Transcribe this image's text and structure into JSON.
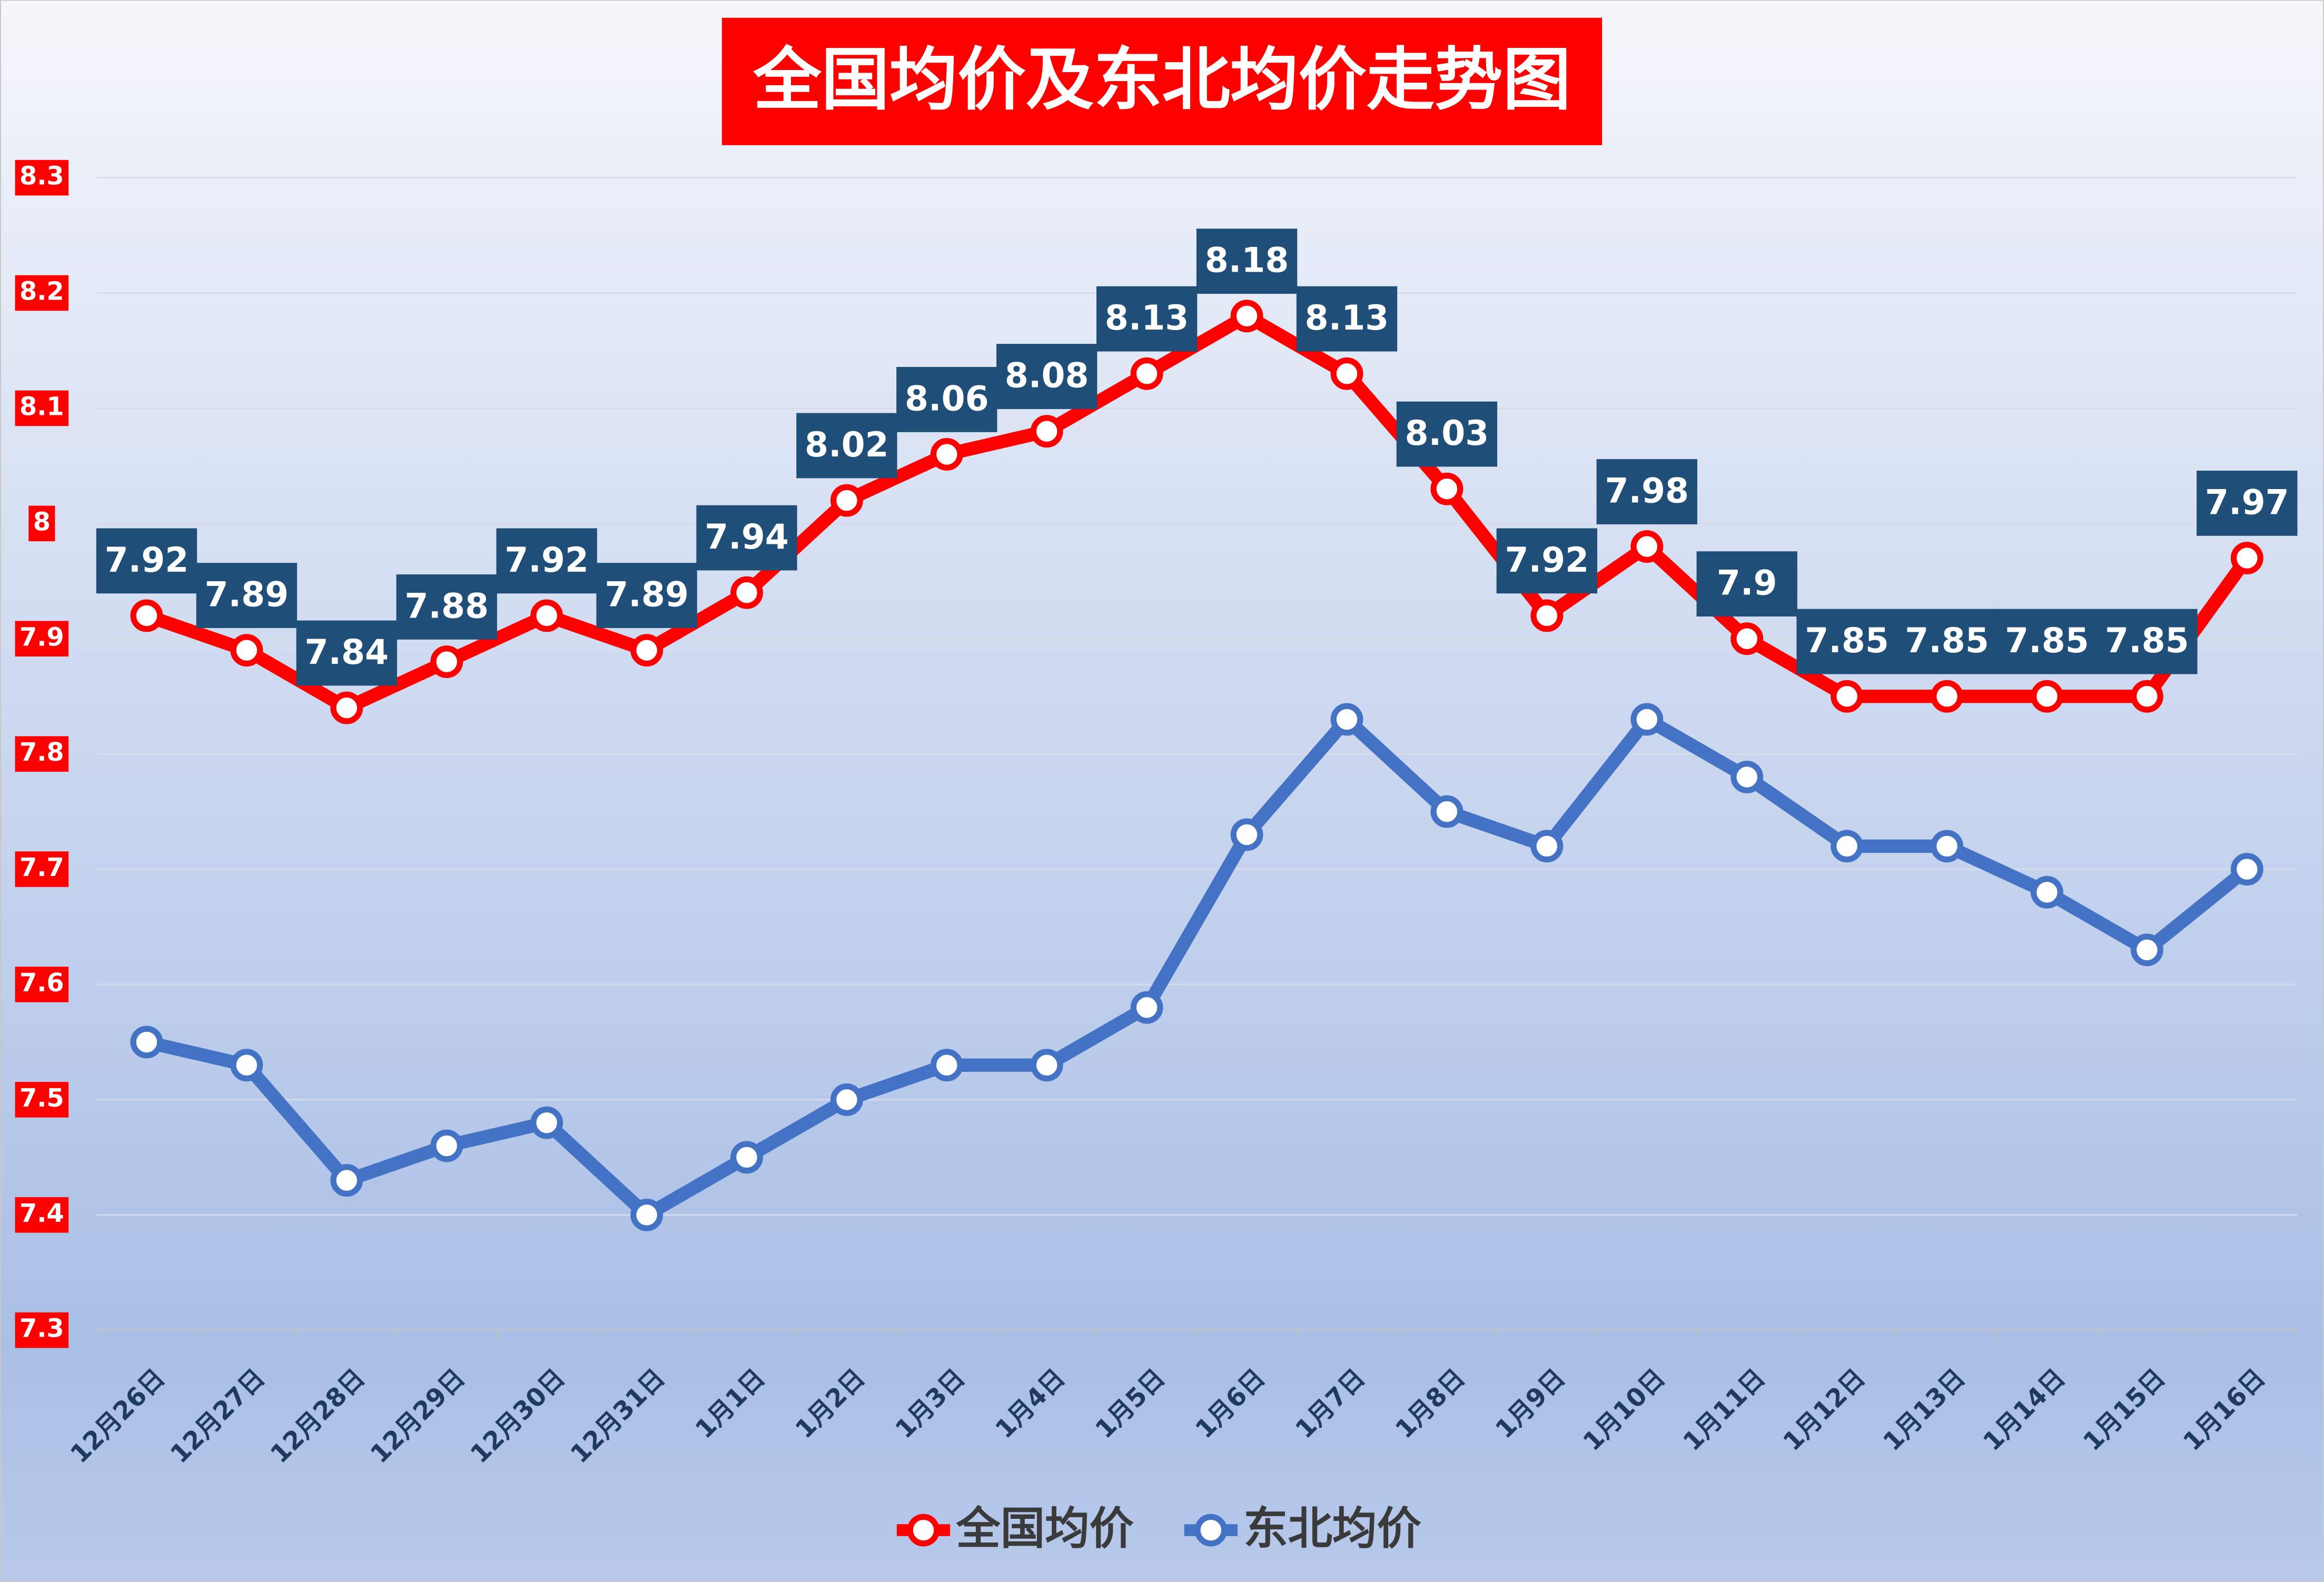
{
  "chart_data": {
    "type": "line",
    "title": "全国均价及东北均价走势图",
    "categories": [
      "12月26日",
      "12月27日",
      "12月28日",
      "12月29日",
      "12月30日",
      "12月31日",
      "1月1日",
      "1月2日",
      "1月3日",
      "1月4日",
      "1月5日",
      "1月6日",
      "1月7日",
      "1月8日",
      "1月9日",
      "1月10日",
      "1月11日",
      "1月12日",
      "1月13日",
      "1月14日",
      "1月15日",
      "1月16日"
    ],
    "series": [
      {
        "name": "全国均价",
        "color": "#ff0000",
        "show_value_labels": true,
        "values": [
          7.92,
          7.89,
          7.84,
          7.88,
          7.92,
          7.89,
          7.94,
          8.02,
          8.06,
          8.08,
          8.13,
          8.18,
          8.13,
          8.03,
          7.92,
          7.98,
          7.9,
          7.85,
          7.85,
          7.85,
          7.85,
          7.97
        ]
      },
      {
        "name": "东北均价",
        "color": "#4472c4",
        "show_value_labels": false,
        "values": [
          7.55,
          7.53,
          7.43,
          7.46,
          7.48,
          7.4,
          7.45,
          7.5,
          7.53,
          7.53,
          7.58,
          7.73,
          7.83,
          7.75,
          7.72,
          7.83,
          7.78,
          7.72,
          7.72,
          7.68,
          7.63,
          7.7
        ]
      }
    ],
    "ylim": [
      7.3,
      8.3
    ],
    "yticks": [
      7.3,
      7.4,
      7.5,
      7.6,
      7.7,
      7.8,
      7.9,
      8,
      8.1,
      8.2,
      8.3
    ],
    "grid": true,
    "legend": "bottom"
  }
}
